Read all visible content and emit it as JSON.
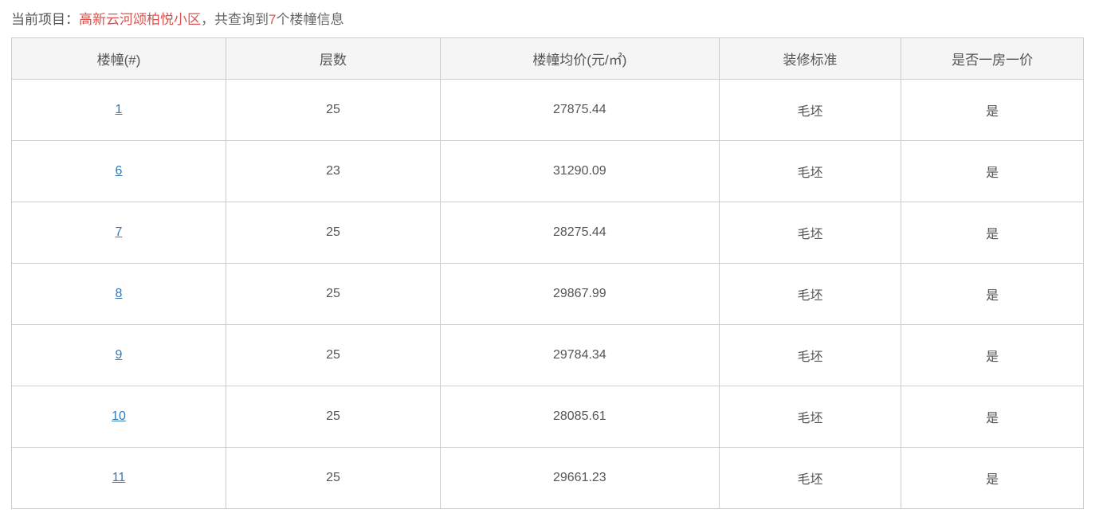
{
  "header": {
    "label_prefix": "当前项目：",
    "project_name": "高新云河颂柏悦小区",
    "mid_text": "，共查询到",
    "count": "7",
    "suffix_text": "个楼幢信息"
  },
  "table": {
    "columns": [
      "楼幢(#)",
      "层数",
      "楼幢均价(元/㎡)",
      "装修标准",
      "是否一房一价"
    ],
    "rows": [
      {
        "building": "1",
        "floors": "25",
        "avg_price": "27875.44",
        "decor": "毛坯",
        "one_price": "是"
      },
      {
        "building": "6",
        "floors": "23",
        "avg_price": "31290.09",
        "decor": "毛坯",
        "one_price": "是"
      },
      {
        "building": "7",
        "floors": "25",
        "avg_price": "28275.44",
        "decor": "毛坯",
        "one_price": "是"
      },
      {
        "building": "8",
        "floors": "25",
        "avg_price": "29867.99",
        "decor": "毛坯",
        "one_price": "是"
      },
      {
        "building": "9",
        "floors": "25",
        "avg_price": "29784.34",
        "decor": "毛坯",
        "one_price": "是"
      },
      {
        "building": "10",
        "floors": "25",
        "avg_price": "28085.61",
        "decor": "毛坯",
        "one_price": "是"
      },
      {
        "building": "11",
        "floors": "25",
        "avg_price": "29661.23",
        "decor": "毛坯",
        "one_price": "是"
      }
    ]
  },
  "style": {
    "link_color": "#337ab7",
    "highlight_color": "#d9534f",
    "border_color": "#cccccc",
    "header_bg": "#f5f5f5",
    "text_color": "#555555"
  }
}
